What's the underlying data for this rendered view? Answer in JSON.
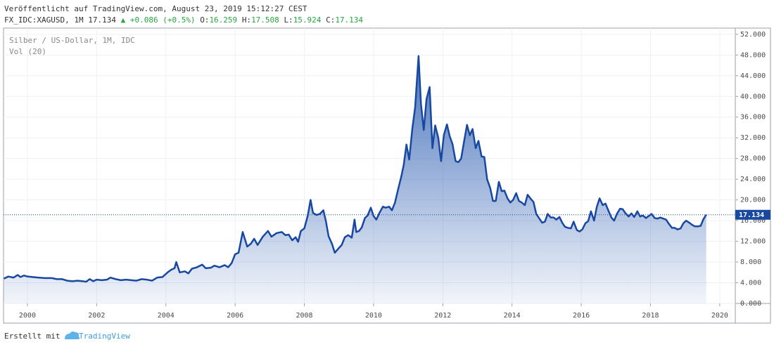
{
  "header": {
    "published": "Veröffentlicht auf TradingView.com, August 23, 2019 15:12:27 CEST",
    "symbol": "FX_IDC:XAGUSD, 1M",
    "price": "17.134",
    "change": "+0.086 (+0.5%)",
    "ohlc": [
      {
        "label": "O:",
        "value": "16.259"
      },
      {
        "label": "H:",
        "value": "17.508"
      },
      {
        "label": "L:",
        "value": "15.924"
      },
      {
        "label": "C:",
        "value": "17.134"
      }
    ]
  },
  "chart_data": {
    "type": "area",
    "title": "Silber / US-Dollar, 1M, IDC",
    "subtitle": "Vol (20)",
    "x": [
      1999.32,
      1999.45,
      1999.6,
      1999.72,
      1999.8,
      1999.9,
      2000.0,
      2000.15,
      2000.3,
      2000.5,
      2000.7,
      2000.85,
      2001.0,
      2001.15,
      2001.3,
      2001.45,
      2001.6,
      2001.7,
      2001.8,
      2001.9,
      2002.0,
      2002.15,
      2002.3,
      2002.4,
      2002.55,
      2002.7,
      2002.85,
      2003.0,
      2003.15,
      2003.3,
      2003.45,
      2003.6,
      2003.75,
      2003.9,
      2004.05,
      2004.15,
      2004.25,
      2004.3,
      2004.4,
      2004.55,
      2004.65,
      2004.75,
      2004.9,
      2005.05,
      2005.15,
      2005.3,
      2005.4,
      2005.55,
      2005.7,
      2005.8,
      2005.9,
      2006.0,
      2006.1,
      2006.22,
      2006.35,
      2006.45,
      2006.55,
      2006.65,
      2006.8,
      2006.95,
      2007.05,
      2007.2,
      2007.35,
      2007.45,
      2007.55,
      2007.65,
      2007.75,
      2007.82,
      2007.9,
      2008.0,
      2008.1,
      2008.18,
      2008.25,
      2008.35,
      2008.45,
      2008.55,
      2008.62,
      2008.7,
      2008.8,
      2008.88,
      2008.97,
      2009.08,
      2009.17,
      2009.27,
      2009.37,
      2009.45,
      2009.5,
      2009.58,
      2009.66,
      2009.75,
      2009.83,
      2009.92,
      2010.0,
      2010.08,
      2010.17,
      2010.27,
      2010.35,
      2010.45,
      2010.53,
      2010.62,
      2010.7,
      2010.8,
      2010.87,
      2010.95,
      2011.03,
      2011.12,
      2011.2,
      2011.3,
      2011.37,
      2011.45,
      2011.53,
      2011.62,
      2011.7,
      2011.78,
      2011.87,
      2011.95,
      2012.03,
      2012.12,
      2012.2,
      2012.28,
      2012.37,
      2012.45,
      2012.53,
      2012.62,
      2012.7,
      2012.78,
      2012.86,
      2012.95,
      2013.03,
      2013.12,
      2013.2,
      2013.28,
      2013.37,
      2013.45,
      2013.53,
      2013.62,
      2013.7,
      2013.78,
      2013.87,
      2013.95,
      2014.03,
      2014.12,
      2014.2,
      2014.28,
      2014.37,
      2014.45,
      2014.53,
      2014.62,
      2014.7,
      2014.78,
      2014.87,
      2014.95,
      2015.03,
      2015.12,
      2015.2,
      2015.28,
      2015.37,
      2015.45,
      2015.53,
      2015.62,
      2015.7,
      2015.78,
      2015.87,
      2015.95,
      2016.03,
      2016.12,
      2016.2,
      2016.28,
      2016.37,
      2016.45,
      2016.53,
      2016.62,
      2016.7,
      2016.78,
      2016.87,
      2016.95,
      2017.03,
      2017.12,
      2017.2,
      2017.28,
      2017.37,
      2017.45,
      2017.53,
      2017.62,
      2017.7,
      2017.78,
      2017.87,
      2017.95,
      2018.03,
      2018.12,
      2018.2,
      2018.28,
      2018.37,
      2018.45,
      2018.53,
      2018.62,
      2018.7,
      2018.78,
      2018.87,
      2018.95,
      2019.03,
      2019.12,
      2019.2,
      2019.28,
      2019.37,
      2019.45,
      2019.53,
      2019.61
    ],
    "series": [
      {
        "color": "#1848a0",
        "values": [
          4.8,
          5.2,
          5.0,
          5.5,
          5.1,
          5.4,
          5.2,
          5.1,
          5.0,
          4.9,
          4.9,
          4.7,
          4.7,
          4.4,
          4.3,
          4.4,
          4.3,
          4.2,
          4.7,
          4.3,
          4.6,
          4.5,
          4.6,
          5.0,
          4.7,
          4.5,
          4.6,
          4.5,
          4.4,
          4.7,
          4.6,
          4.4,
          5.0,
          5.1,
          6.0,
          6.5,
          6.8,
          8.0,
          6.0,
          6.2,
          5.8,
          6.7,
          7.0,
          7.5,
          6.8,
          6.9,
          7.3,
          7.0,
          7.4,
          7.0,
          7.8,
          9.5,
          9.8,
          13.8,
          11.0,
          11.5,
          12.5,
          11.3,
          12.9,
          14.0,
          12.9,
          13.6,
          13.8,
          13.2,
          13.3,
          12.2,
          12.8,
          11.9,
          14.0,
          14.5,
          17.0,
          20.0,
          17.5,
          17.1,
          17.3,
          18.0,
          16.0,
          13.0,
          11.5,
          9.8,
          10.5,
          11.3,
          12.8,
          13.2,
          12.7,
          16.2,
          13.8,
          14.0,
          14.7,
          16.5,
          17.0,
          18.5,
          16.9,
          16.2,
          17.5,
          18.7,
          18.5,
          18.7,
          18.0,
          19.5,
          21.8,
          24.5,
          26.7,
          30.7,
          27.8,
          33.8,
          37.8,
          47.8,
          38.5,
          33.5,
          39.5,
          41.8,
          30.0,
          34.4,
          32.0,
          27.5,
          32.5,
          34.6,
          32.3,
          30.8,
          27.5,
          27.3,
          28.0,
          31.5,
          34.5,
          32.5,
          33.7,
          30.0,
          31.4,
          28.4,
          28.3,
          24.0,
          22.3,
          19.8,
          19.8,
          23.5,
          21.7,
          21.8,
          20.3,
          19.5,
          20.0,
          21.3,
          19.8,
          19.5,
          19.0,
          21.0,
          20.3,
          19.6,
          17.3,
          16.5,
          15.6,
          15.8,
          17.3,
          16.6,
          16.6,
          16.2,
          16.7,
          15.6,
          14.8,
          14.6,
          14.5,
          15.8,
          14.2,
          13.9,
          14.3,
          15.5,
          15.9,
          17.8,
          16.0,
          18.7,
          20.3,
          19.0,
          19.3,
          18.0,
          16.6,
          16.0,
          17.3,
          18.3,
          18.2,
          17.4,
          16.8,
          17.4,
          16.7,
          17.8,
          16.8,
          17.0,
          16.5,
          16.9,
          17.3,
          16.5,
          16.4,
          16.6,
          16.4,
          16.2,
          15.4,
          14.6,
          14.6,
          14.3,
          14.5,
          15.5,
          16.0,
          15.6,
          15.2,
          14.9,
          14.9,
          15.0,
          16.3,
          17.134
        ]
      }
    ],
    "xlim": [
      1999.31,
      2020.45
    ],
    "xticks": [
      2000,
      2002,
      2004,
      2006,
      2008,
      2010,
      2012,
      2014,
      2016,
      2018,
      2020
    ],
    "ylim": [
      0,
      53.2
    ],
    "yticks": [
      {
        "value": 0,
        "label": "0.000"
      },
      {
        "value": 4,
        "label": "4.000"
      },
      {
        "value": 8,
        "label": "8.000"
      },
      {
        "value": 12,
        "label": "12.000"
      },
      {
        "value": 16,
        "label": "16.000"
      },
      {
        "value": 20,
        "label": "20.000"
      },
      {
        "value": 24,
        "label": "24.000"
      },
      {
        "value": 28,
        "label": "28.000"
      },
      {
        "value": 32,
        "label": "32.000"
      },
      {
        "value": 36,
        "label": "36.000"
      },
      {
        "value": 40,
        "label": "40.000"
      },
      {
        "value": 44,
        "label": "44.000"
      },
      {
        "value": 48,
        "label": "48.000"
      },
      {
        "value": 52,
        "label": "52.000"
      }
    ],
    "grid": true
  },
  "footer": {
    "created_with": "Erstellt mit",
    "brand": "TradingView"
  }
}
